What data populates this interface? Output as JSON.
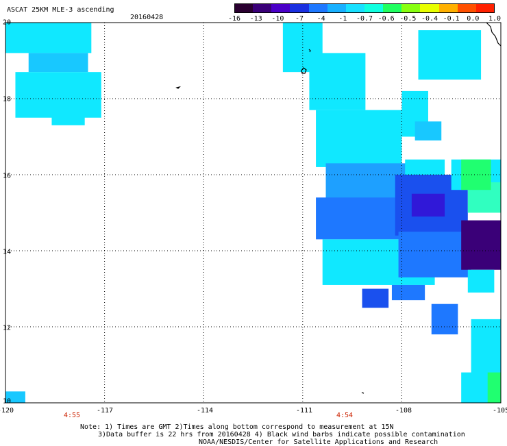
{
  "header": {
    "title": "ASCAT 25KM MLE-3 ascending",
    "date": "20160428"
  },
  "colorbar": {
    "colors": [
      "#2a0030",
      "#3a0078",
      "#4a00c8",
      "#1a30e0",
      "#1e78ff",
      "#18b0ff",
      "#18e0ff",
      "#10ffe0",
      "#20ff60",
      "#88ff10",
      "#e8ff00",
      "#ffb000",
      "#ff5000",
      "#ff2000"
    ],
    "labels": [
      "-16",
      "-13",
      "-10",
      "-7",
      "-4",
      "-1",
      "-0.7",
      "-0.6",
      "-0.5",
      "-0.4",
      "-0.1",
      "0.0",
      "1.0"
    ]
  },
  "axes": {
    "x_labels": [
      "-120",
      "-117",
      "-114",
      "-111",
      "-108",
      "-105"
    ],
    "y_labels": [
      "20",
      "18",
      "16",
      "14",
      "12",
      "10"
    ],
    "time_labels": [
      "4:55",
      "4:54"
    ]
  },
  "notes": {
    "line1": "Note: 1) Times are GMT 2)Times along bottom correspond to measurement at 15N",
    "line2": "3)Data buffer is 22 hrs from 20160428 4) Black wind barbs indicate possible contamination",
    "line3": "NOAA/NESDIS/Center for Satellite Applications and Research"
  },
  "map_data": {
    "lon_range": [
      -120,
      -105
    ],
    "lat_range": [
      10,
      20
    ],
    "color_classes": {
      "c": "#10e8ff",
      "d": "#18c8ff",
      "b": "#1ea0ff",
      "m": "#1e78ff",
      "k": "#1a50ee",
      "v": "#3018d8",
      "p": "#3a0078",
      "g": "#20ff70",
      "t": "#30ffc0"
    },
    "cells": [
      {
        "lon": -120,
        "lat": 19.2,
        "w": 2.6,
        "h": 0.8,
        "cls": "c"
      },
      {
        "lon": -119.3,
        "lat": 18.7,
        "w": 1.8,
        "h": 0.5,
        "cls": "d"
      },
      {
        "lon": -119.7,
        "lat": 17.5,
        "w": 2.6,
        "h": 1.2,
        "cls": "c"
      },
      {
        "lon": -118.6,
        "lat": 17.3,
        "w": 1.0,
        "h": 0.3,
        "cls": "c"
      },
      {
        "lon": -120,
        "lat": 10,
        "w": 0.6,
        "h": 0.3,
        "cls": "d"
      },
      {
        "lon": -111.6,
        "lat": 18.7,
        "w": 1.2,
        "h": 1.3,
        "cls": "c"
      },
      {
        "lon": -110.8,
        "lat": 17.7,
        "w": 1.7,
        "h": 1.5,
        "cls": "c"
      },
      {
        "lon": -110.6,
        "lat": 16.2,
        "w": 2.6,
        "h": 1.5,
        "cls": "c"
      },
      {
        "lon": -110.3,
        "lat": 15.3,
        "w": 3.4,
        "h": 1.0,
        "cls": "b"
      },
      {
        "lon": -110.6,
        "lat": 14.3,
        "w": 3.3,
        "h": 1.1,
        "cls": "m"
      },
      {
        "lon": -110.4,
        "lat": 13.1,
        "w": 3.4,
        "h": 1.2,
        "cls": "c"
      },
      {
        "lon": -109.2,
        "lat": 12.5,
        "w": 0.8,
        "h": 0.5,
        "cls": "k"
      },
      {
        "lon": -108.3,
        "lat": 12.7,
        "w": 1.0,
        "h": 0.4,
        "cls": "m"
      },
      {
        "lon": -107.9,
        "lat": 15.7,
        "w": 1.2,
        "h": 0.7,
        "cls": "c"
      },
      {
        "lon": -108.2,
        "lat": 14.4,
        "w": 2.2,
        "h": 1.6,
        "cls": "k"
      },
      {
        "lon": -107.7,
        "lat": 14.9,
        "w": 1.0,
        "h": 0.6,
        "cls": "v"
      },
      {
        "lon": -108.1,
        "lat": 13.3,
        "w": 2.2,
        "h": 1.2,
        "cls": "m"
      },
      {
        "lon": -106.5,
        "lat": 15.6,
        "w": 1.5,
        "h": 0.8,
        "cls": "c"
      },
      {
        "lon": -106.0,
        "lat": 15.0,
        "w": 1.0,
        "h": 0.8,
        "cls": "t"
      },
      {
        "lon": -106.2,
        "lat": 15.6,
        "w": 0.9,
        "h": 0.8,
        "cls": "g"
      },
      {
        "lon": -106.2,
        "lat": 13.5,
        "w": 1.2,
        "h": 1.3,
        "cls": "p"
      },
      {
        "lon": -106.0,
        "lat": 12.9,
        "w": 0.8,
        "h": 0.6,
        "cls": "c"
      },
      {
        "lon": -108.0,
        "lat": 17.0,
        "w": 0.8,
        "h": 1.2,
        "cls": "c"
      },
      {
        "lon": -107.6,
        "lat": 16.9,
        "w": 0.8,
        "h": 0.5,
        "cls": "d"
      },
      {
        "lon": -107.5,
        "lat": 18.5,
        "w": 1.9,
        "h": 1.3,
        "cls": "c"
      },
      {
        "lon": -107.1,
        "lat": 11.8,
        "w": 0.8,
        "h": 0.8,
        "cls": "m"
      },
      {
        "lon": -105.9,
        "lat": 10.0,
        "w": 0.9,
        "h": 2.2,
        "cls": "c"
      },
      {
        "lon": -106.2,
        "lat": 10.0,
        "w": 0.8,
        "h": 0.8,
        "cls": "c"
      },
      {
        "lon": -105.4,
        "lat": 10.0,
        "w": 0.4,
        "h": 0.8,
        "cls": "g"
      }
    ]
  }
}
